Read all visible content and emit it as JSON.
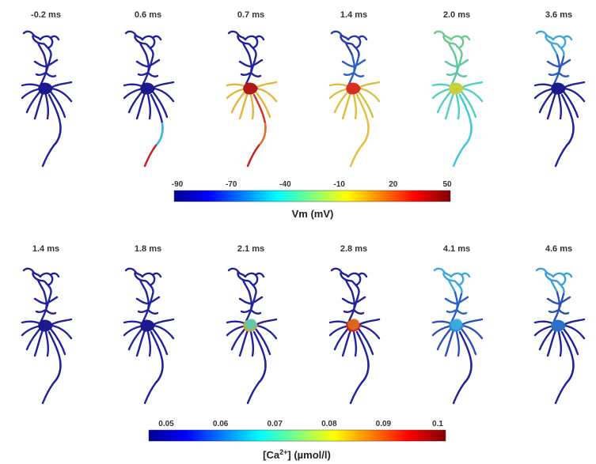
{
  "row1": {
    "frames": [
      {
        "time": "-0.2 ms",
        "colors": {
          "trunk": "#22229a",
          "axon": "#22229a",
          "soma": "#1a1a8c",
          "crown": "#22229a",
          "branches": "#22229a"
        }
      },
      {
        "time": "0.6 ms",
        "colors": {
          "trunk": "#22229a",
          "axon": "#22229a",
          "soma": "#1a1a8c",
          "crown": "#22229a",
          "branches": "#22229a",
          "axon_tip": "#c81e1e",
          "axon_mid": "#3ab8e6"
        }
      },
      {
        "time": "0.7 ms",
        "colors": {
          "trunk": "#22229a",
          "axon": "#d0302a",
          "soma": "#b01818",
          "crown": "#22229a",
          "branches": "#e6b43a",
          "axon_tip": "#c81e1e",
          "axon_mid": "#e8702a"
        }
      },
      {
        "time": "1.4 ms",
        "colors": {
          "trunk": "#2a60c8",
          "axon": "#e0c040",
          "soma": "#d83020",
          "crown": "#2a3aa8",
          "branches": "#d8c040",
          "axon_tip": "#e0c040",
          "axon_mid": "#e0c040"
        }
      },
      {
        "time": "2.0 ms",
        "colors": {
          "trunk": "#5cc8a0",
          "axon": "#40c8d8",
          "soma": "#c8d040",
          "crown": "#6cc890",
          "branches": "#50d0c0",
          "axon_tip": "#40c8d8",
          "axon_mid": "#40c8d8"
        }
      },
      {
        "time": "3.6 ms",
        "colors": {
          "trunk": "#2a5ac0",
          "axon": "#22229a",
          "soma": "#1a1a8c",
          "crown": "#40a8d8",
          "branches": "#22229a"
        }
      }
    ],
    "colorbar": {
      "title": "Vm (mV)",
      "ticks": [
        "-90",
        "-70",
        "-40",
        "-10",
        "20",
        "50"
      ]
    }
  },
  "row2": {
    "frames": [
      {
        "time": "1.4 ms",
        "colors": {
          "trunk": "#22229a",
          "axon": "#22229a",
          "soma": "#1a1a8c",
          "crown": "#22229a",
          "branches": "#22229a"
        }
      },
      {
        "time": "1.8 ms",
        "colors": {
          "trunk": "#22229a",
          "axon": "#22229a",
          "soma": "#1a1a8c",
          "crown": "#22229a",
          "branches": "#22229a"
        }
      },
      {
        "time": "2.1 ms",
        "colors": {
          "trunk": "#22229a",
          "axon": "#22229a",
          "soma": "#d0a030",
          "crown": "#22229a",
          "branches": "#22229a",
          "soma_glow": "#50d0c0"
        }
      },
      {
        "time": "2.8 ms",
        "colors": {
          "trunk": "#22229a",
          "axon": "#22229a",
          "soma": "#c82818",
          "crown": "#22229a",
          "branches": "#22229a",
          "soma_glow": "#e07020"
        }
      },
      {
        "time": "4.1 ms",
        "colors": {
          "trunk": "#2a60c8",
          "axon": "#22229a",
          "soma": "#2a8ad8",
          "crown": "#3aa8d8",
          "branches": "#2a50b8",
          "soma_glow": "#3ab0e0"
        }
      },
      {
        "time": "4.6 ms",
        "colors": {
          "trunk": "#2a50b8",
          "axon": "#22229a",
          "soma": "#2a70c8",
          "crown": "#3aa0d8",
          "branches": "#22229a"
        }
      }
    ],
    "colorbar": {
      "title_prefix": "[Ca",
      "title_sup": "2+",
      "title_suffix": "] (µmol/l)",
      "ticks": [
        "0.05",
        "0.06",
        "0.07",
        "0.08",
        "0.09",
        "0.1"
      ]
    }
  },
  "colormap": [
    "#00008f",
    "#0000ff",
    "#0080ff",
    "#00ffff",
    "#80ff80",
    "#ffff00",
    "#ff8000",
    "#ff0000",
    "#800000"
  ]
}
